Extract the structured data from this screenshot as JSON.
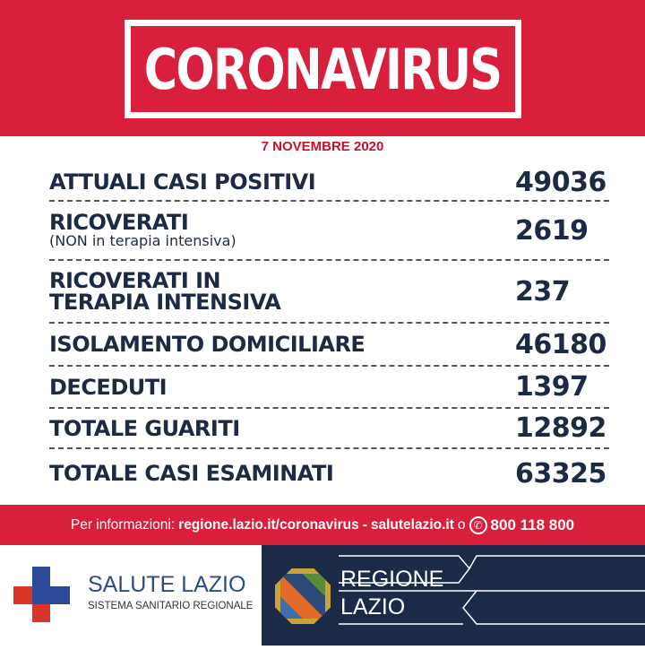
{
  "header": {
    "title": "CORONAVIRUS"
  },
  "date": "7 NOVEMBRE 2020",
  "rows": [
    {
      "label": "ATTUALI CASI POSITIVI",
      "value": "49036"
    },
    {
      "label": "RICOVERATI",
      "sub": "(NON in terapia intensiva)",
      "value": "2619"
    },
    {
      "label": "RICOVERATI IN",
      "label2": "TERAPIA INTENSIVA",
      "value": "237"
    },
    {
      "label": "ISOLAMENTO DOMICILIARE",
      "value": "46180"
    },
    {
      "label": "DECEDUTI",
      "value": "1397"
    },
    {
      "label": "TOTALE GUARITI",
      "value": "12892"
    },
    {
      "label": "TOTALE CASI ESAMINATI",
      "value": "63325"
    }
  ],
  "info": {
    "prefix": "Per informazioni:",
    "link1": "regione.lazio.it/coronavirus",
    "sep": "-",
    "link2": "salutelazio.it",
    "or": "o",
    "phone": "800 118 800",
    "phone_icon": "phone-icon"
  },
  "footer": {
    "salute_title": "SALUTE LAZIO",
    "salute_sub": "SISTEMA SANITARIO REGIONALE",
    "regione_1": "REGIONE",
    "regione_2": "LAZIO"
  },
  "colors": {
    "red": "#d81f3c",
    "navy": "#1b2a47",
    "text": "#1c2a44"
  }
}
